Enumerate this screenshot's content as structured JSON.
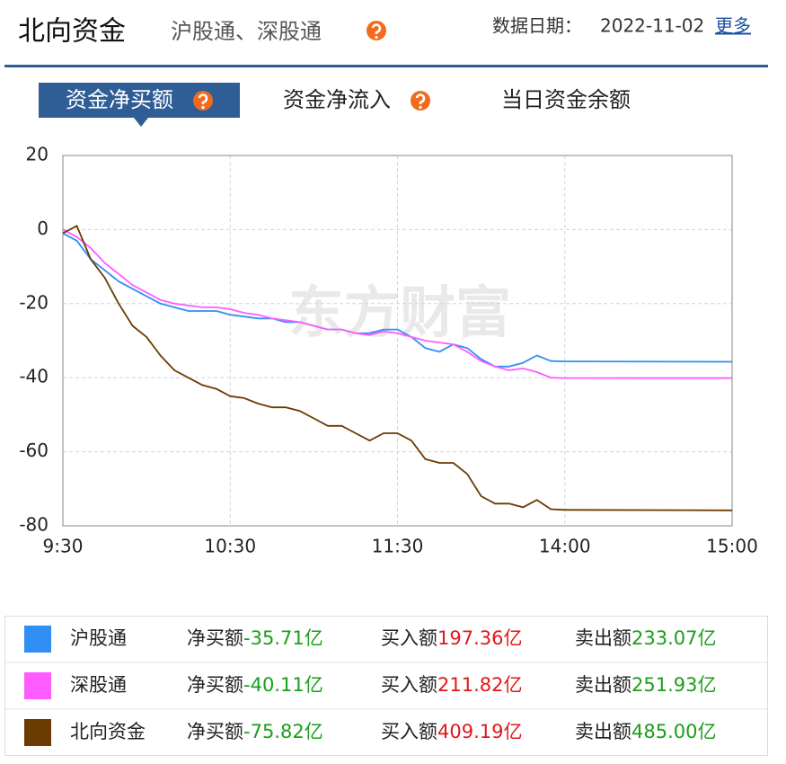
{
  "header": {
    "title": "北向资金",
    "subtitle": "沪股通、深股通",
    "date_label": "数据日期：",
    "date": "2022-11-02",
    "more": "更多"
  },
  "tabs": [
    "资金净买额",
    "资金净流入",
    "当日资金余额"
  ],
  "watermark": "东方财富",
  "chart_data": {
    "type": "line",
    "x": [
      "9:30",
      "9:35",
      "9:40",
      "9:45",
      "9:50",
      "9:55",
      "10:00",
      "10:05",
      "10:10",
      "10:15",
      "10:20",
      "10:25",
      "10:30",
      "10:35",
      "10:40",
      "10:45",
      "10:50",
      "10:55",
      "11:00",
      "11:05",
      "11:10",
      "11:15",
      "11:20",
      "11:25",
      "11:30",
      "13:05",
      "13:10",
      "13:15",
      "13:20",
      "13:25",
      "13:30",
      "13:35",
      "13:40",
      "13:45",
      "13:50",
      "13:55",
      "14:00",
      "15:00"
    ],
    "series": [
      {
        "name": "沪股通",
        "color": "#2f8ff5",
        "values": [
          -1,
          -3,
          -8,
          -11,
          -14,
          -16,
          -18,
          -20,
          -21,
          -22,
          -22,
          -22,
          -23,
          -23.5,
          -24,
          -24,
          -25,
          -25,
          -26,
          -27,
          -27,
          -28,
          -28,
          -27,
          -27,
          -29,
          -32,
          -33,
          -31,
          -32,
          -35,
          -37,
          -37,
          -36,
          -34,
          -35.5,
          -35.6,
          -35.71
        ]
      },
      {
        "name": "深股通",
        "color": "#ff5cff",
        "values": [
          0,
          -2,
          -5,
          -9,
          -12,
          -15,
          -17,
          -19,
          -20,
          -20.5,
          -21,
          -21,
          -21.5,
          -22.5,
          -23,
          -24,
          -24.5,
          -25,
          -26,
          -27,
          -27,
          -28,
          -28.5,
          -27.5,
          -28,
          -29,
          -30,
          -30.5,
          -31,
          -33,
          -35.5,
          -37,
          -38,
          -37.5,
          -38.5,
          -40,
          -40.1,
          -40.11
        ]
      },
      {
        "name": "北向资金",
        "color": "#6b3a00",
        "values": [
          -1,
          1,
          -8,
          -13,
          -20,
          -26,
          -29,
          -34,
          -38,
          -40,
          -42,
          -43,
          -45,
          -45.5,
          -47,
          -48,
          -48,
          -49,
          -51,
          -53,
          -53,
          -55,
          -57,
          -55,
          -55,
          -57,
          -62,
          -63,
          -63,
          -66,
          -72,
          -74,
          -74,
          -75,
          -73,
          -75.5,
          -75.7,
          -75.82
        ]
      }
    ],
    "xlim": [
      "9:30",
      "15:00"
    ],
    "xticks": [
      "9:30",
      "10:30",
      "11:30",
      "14:00",
      "15:00"
    ],
    "ylim": [
      -80,
      20
    ],
    "yticks": [
      20,
      0,
      -20,
      -40,
      -60,
      -80
    ],
    "grid": true
  },
  "summary": [
    {
      "net_label": "净买额",
      "net": "-35.71亿",
      "buy_label": "买入额",
      "buy": "197.36亿",
      "sell_label": "卖出额",
      "sell": "233.07亿"
    },
    {
      "net_label": "净买额",
      "net": "-40.11亿",
      "buy_label": "买入额",
      "buy": "211.82亿",
      "sell_label": "卖出额",
      "sell": "251.93亿"
    },
    {
      "net_label": "净买额",
      "net": "-75.82亿",
      "buy_label": "买入额",
      "buy": "409.19亿",
      "sell_label": "卖出额",
      "sell": "485.00亿"
    }
  ]
}
